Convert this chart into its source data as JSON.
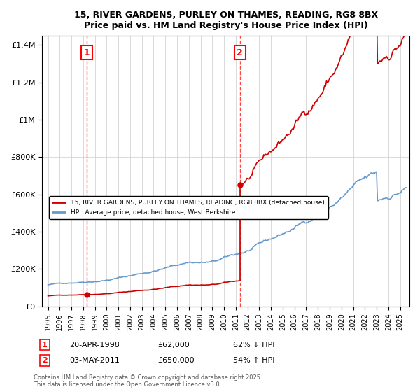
{
  "title": "15, RIVER GARDENS, PURLEY ON THAMES, READING, RG8 8BX",
  "subtitle": "Price paid vs. HM Land Registry's House Price Index (HPI)",
  "legend_line1": "15, RIVER GARDENS, PURLEY ON THAMES, READING, RG8 8BX (detached house)",
  "legend_line2": "HPI: Average price, detached house, West Berkshire",
  "annotation1_label": "1",
  "annotation1_date": "20-APR-1998",
  "annotation1_price": "£62,000",
  "annotation1_hpi": "62% ↓ HPI",
  "annotation2_label": "2",
  "annotation2_date": "03-MAY-2011",
  "annotation2_price": "£650,000",
  "annotation2_hpi": "54% ↑ HPI",
  "vline1_x": 1998.3,
  "vline2_x": 2011.35,
  "sale1_x": 1998.3,
  "sale1_y": 62000,
  "sale2_x": 2011.35,
  "sale2_y": 650000,
  "ylim": [
    0,
    1450000
  ],
  "xlim": [
    1994.5,
    2025.8
  ],
  "line_color_red": "#cc0000",
  "line_color_blue": "#6699cc",
  "vline_color": "#ff4444",
  "footer": "Contains HM Land Registry data © Crown copyright and database right 2025.\nThis data is licensed under the Open Government Licence v3.0.",
  "background_color": "#ffffff",
  "grid_color": "#cccccc"
}
